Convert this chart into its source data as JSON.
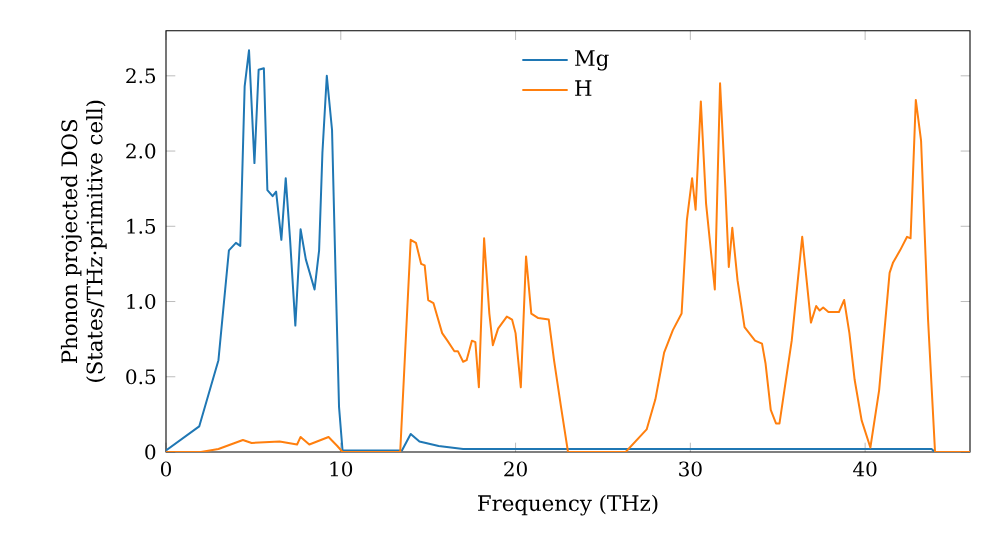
{
  "chart_data": {
    "type": "line",
    "xlabel": "Frequency (THz)",
    "ylabel": "Phonon projected DOS\n(States/THz·primitive cell)",
    "xlim": [
      0,
      46
    ],
    "ylim": [
      0,
      2.8
    ],
    "xticks": [
      0,
      10,
      20,
      30,
      40
    ],
    "yticks": [
      0,
      0.5,
      {
        "value": 1,
        "label": "1.0"
      },
      1.5,
      {
        "value": 2,
        "label": "2.0"
      },
      2.5
    ],
    "legend": "top",
    "grid": false,
    "marker": "none",
    "line_style": "solid",
    "series": [
      {
        "name": "Mg",
        "color": "#1f77b4",
        "x": [
          0,
          1.9,
          3.0,
          3.6,
          4.0,
          4.25,
          4.5,
          4.75,
          5.06,
          5.3,
          5.6,
          5.8,
          6.1,
          6.3,
          6.6,
          6.85,
          7.1,
          7.4,
          7.7,
          8.0,
          8.5,
          8.76,
          8.95,
          9.2,
          9.5,
          9.7,
          9.9,
          10.1,
          13.5,
          14.0,
          14.5,
          15.6,
          17.0,
          20.0,
          25.0,
          30.0,
          35.0,
          40.0,
          43.8,
          44.0,
          46.0
        ],
        "values": [
          0.01,
          0.17,
          0.61,
          1.34,
          1.39,
          1.37,
          2.43,
          2.67,
          1.92,
          2.54,
          2.55,
          1.74,
          1.7,
          1.73,
          1.41,
          1.82,
          1.41,
          0.84,
          1.48,
          1.28,
          1.08,
          1.34,
          1.99,
          2.5,
          2.14,
          1.19,
          0.3,
          0.01,
          0.01,
          0.12,
          0.07,
          0.04,
          0.02,
          0.02,
          0.02,
          0.02,
          0.02,
          0.02,
          0.02,
          0,
          0
        ]
      },
      {
        "name": "H",
        "color": "#ff7f0e",
        "x": [
          0,
          2.0,
          3.0,
          4.4,
          4.9,
          6.5,
          7.5,
          7.7,
          8.2,
          9.3,
          9.8,
          10.1,
          13.4,
          14.0,
          14.3,
          14.6,
          14.8,
          15.0,
          15.3,
          15.8,
          16.1,
          16.5,
          16.7,
          17.0,
          17.2,
          17.5,
          17.7,
          17.9,
          18.2,
          18.5,
          18.7,
          19.0,
          19.5,
          19.8,
          20.0,
          20.3,
          20.6,
          20.9,
          21.3,
          21.9,
          22.2,
          22.6,
          23.0,
          26.3,
          27.5,
          28.0,
          28.5,
          29.0,
          29.5,
          29.8,
          30.1,
          30.3,
          30.6,
          30.9,
          31.4,
          31.7,
          32.0,
          32.2,
          32.4,
          32.7,
          33.1,
          33.7,
          34.1,
          34.3,
          34.6,
          34.9,
          35.1,
          35.8,
          36.4,
          36.9,
          37.2,
          37.4,
          37.6,
          37.9,
          38.5,
          38.8,
          39.1,
          39.4,
          39.8,
          40.3,
          40.8,
          41.4,
          41.6,
          42.0,
          42.4,
          42.6,
          42.9,
          43.2,
          43.6,
          44.0,
          46.0
        ],
        "values": [
          0,
          0,
          0.02,
          0.08,
          0.06,
          0.07,
          0.05,
          0.1,
          0.05,
          0.1,
          0.04,
          0,
          0,
          1.41,
          1.39,
          1.25,
          1.24,
          1.01,
          0.99,
          0.79,
          0.74,
          0.67,
          0.67,
          0.6,
          0.61,
          0.74,
          0.73,
          0.43,
          1.42,
          0.92,
          0.71,
          0.82,
          0.9,
          0.88,
          0.79,
          0.43,
          1.3,
          0.92,
          0.89,
          0.88,
          0.61,
          0.3,
          0,
          0,
          0.15,
          0.35,
          0.66,
          0.81,
          0.92,
          1.54,
          1.82,
          1.61,
          2.33,
          1.65,
          1.08,
          2.45,
          1.76,
          1.23,
          1.49,
          1.14,
          0.83,
          0.74,
          0.72,
          0.59,
          0.28,
          0.19,
          0.19,
          0.74,
          1.43,
          0.86,
          0.97,
          0.94,
          0.96,
          0.93,
          0.93,
          1.01,
          0.79,
          0.48,
          0.21,
          0.03,
          0.41,
          1.19,
          1.26,
          1.34,
          1.43,
          1.42,
          2.34,
          2.07,
          0.88,
          0,
          0
        ]
      }
    ]
  }
}
